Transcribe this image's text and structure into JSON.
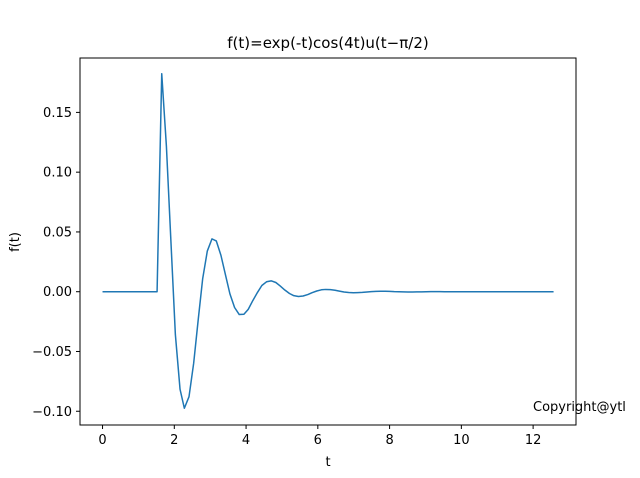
{
  "chart_data": {
    "type": "line",
    "title": "f(t)=exp(-t)cos(4t)u(t−π/2)",
    "xlabel": "t",
    "ylabel": "f(t)",
    "xlim": [
      -0.628,
      13.195
    ],
    "ylim": [
      -0.1115,
      0.1955
    ],
    "xticks": [
      0,
      2,
      4,
      6,
      8,
      10,
      12
    ],
    "xtick_labels": [
      "0",
      "2",
      "4",
      "6",
      "8",
      "10",
      "12"
    ],
    "yticks": [
      -0.1,
      -0.05,
      0.0,
      0.05,
      0.1,
      0.15
    ],
    "ytick_labels": [
      "−0.10",
      "−0.05",
      "0.00",
      "0.05",
      "0.10",
      "0.15"
    ],
    "grid": false,
    "series": [
      {
        "color": "#1f77b4",
        "x": [
          0.0,
          0.5,
          1.0,
          1.5,
          1.52,
          1.65,
          1.78,
          1.9,
          2.03,
          2.16,
          2.28,
          2.41,
          2.54,
          2.67,
          2.79,
          2.92,
          3.05,
          3.17,
          3.3,
          3.43,
          3.55,
          3.68,
          3.81,
          3.94,
          4.06,
          4.19,
          4.32,
          4.44,
          4.57,
          4.7,
          4.83,
          4.95,
          5.08,
          5.21,
          5.33,
          5.46,
          5.59,
          5.72,
          5.84,
          5.97,
          6.1,
          6.22,
          6.35,
          6.48,
          6.6,
          6.73,
          6.86,
          6.99,
          7.11,
          7.24,
          7.37,
          7.49,
          7.62,
          7.75,
          7.88,
          8.0,
          8.13,
          8.26,
          8.38,
          8.51,
          8.64,
          8.76,
          8.89,
          9.02,
          9.15,
          9.27,
          9.4,
          9.53,
          9.65,
          9.78,
          9.91,
          10.03,
          10.16,
          10.29,
          10.42,
          10.54,
          10.67,
          10.8,
          10.92,
          11.05,
          11.18,
          11.31,
          11.43,
          11.56,
          11.69,
          11.81,
          11.94,
          12.07,
          12.19,
          12.32,
          12.45,
          12.57
        ],
        "y": [
          0.0,
          0.0,
          0.0,
          0.0,
          0.0,
          0.1823,
          0.1217,
          0.0458,
          -0.0359,
          -0.0816,
          -0.0975,
          -0.0878,
          -0.0598,
          -0.0224,
          0.0107,
          0.034,
          0.0442,
          0.0425,
          0.0304,
          0.0136,
          -0.0018,
          -0.0132,
          -0.0191,
          -0.0189,
          -0.0148,
          -0.0073,
          -0.0005,
          0.0052,
          0.0083,
          0.0091,
          0.0077,
          0.0048,
          0.0014,
          -0.0015,
          -0.0033,
          -0.004,
          -0.0036,
          -0.0024,
          -0.0008,
          0.0006,
          0.0016,
          0.0019,
          0.0017,
          0.0012,
          0.0005,
          -0.0002,
          -0.0007,
          -0.0009,
          -0.0008,
          -0.0006,
          -0.0002,
          0.0001,
          0.0003,
          0.0004,
          0.0004,
          0.0003,
          0.0001,
          0.0,
          -0.0001,
          -0.0002,
          -0.0002,
          -0.0001,
          -0.0001,
          0.0,
          0.0001,
          0.0001,
          0.0001,
          0.0,
          0.0,
          0.0,
          0.0,
          0.0,
          0.0,
          0.0,
          0.0,
          0.0,
          0.0,
          0.0,
          0.0,
          0.0,
          0.0,
          0.0,
          0.0,
          0.0,
          0.0,
          0.0,
          0.0,
          0.0,
          0.0,
          0.0,
          0.0,
          0.0
        ]
      }
    ]
  },
  "annotation": "Copyright@ytl"
}
